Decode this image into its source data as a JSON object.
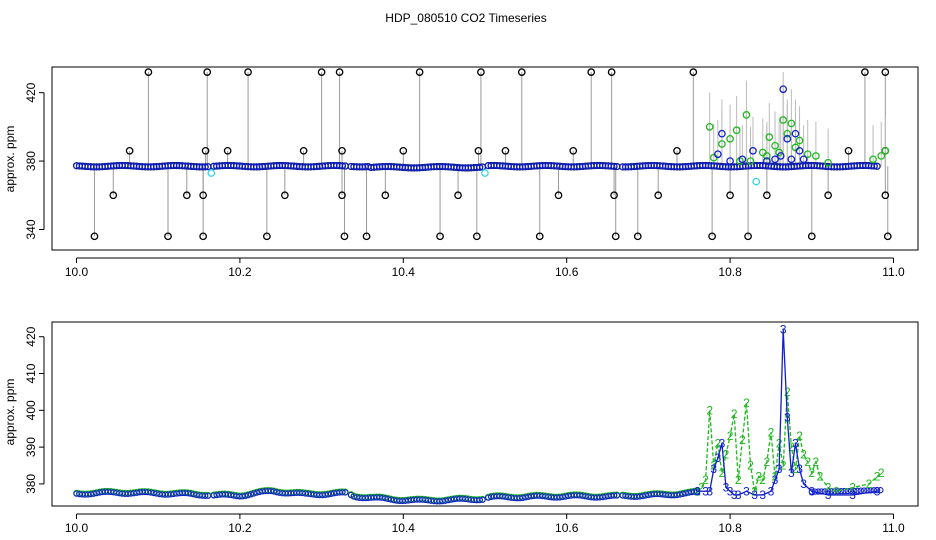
{
  "figure": {
    "title": "HDP_080510  CO2 Timeseries"
  },
  "colors": {
    "raw": "#000000",
    "cyan": "#33d6e6",
    "blue": "#1020c8",
    "green": "#1fb81f",
    "vline": "#9a9a9a"
  },
  "chart_data": [
    {
      "type": "scatter",
      "title": "",
      "xlabel": "",
      "ylabel": "approx. ppm",
      "xlim": [
        9.97,
        11.03
      ],
      "ylim": [
        328,
        435
      ],
      "xticks": [
        10.0,
        10.2,
        10.4,
        10.6,
        10.8,
        11.0
      ],
      "xtick_labels": [
        "10.0",
        "10.2",
        "10.4",
        "10.6",
        "10.8",
        "11.0"
      ],
      "yticks": [
        340,
        380,
        420
      ],
      "ytick_labels": [
        "340",
        "380",
        "420"
      ],
      "grid": false,
      "legend": "none",
      "notes": "Dense circle markers along a baseline near 377 ppm from 10.0 to 10.98 with gaps near 10.165, 10.33, 10.50 and 10.665; vertical grey spikes connect outliers near 432, 378 and 335 ppm.",
      "baseline": {
        "x_start": 10.0,
        "x_end": 10.98,
        "value": 377,
        "gaps": [
          [
            10.163,
            10.168
          ],
          [
            10.33,
            10.334
          ],
          [
            10.498,
            10.502
          ],
          [
            10.662,
            10.668
          ]
        ]
      },
      "raw_high_spikes": [
        {
          "x": 10.088,
          "y": 432
        },
        {
          "x": 10.16,
          "y": 432
        },
        {
          "x": 10.21,
          "y": 432
        },
        {
          "x": 10.3,
          "y": 432
        },
        {
          "x": 10.322,
          "y": 432
        },
        {
          "x": 10.42,
          "y": 432
        },
        {
          "x": 10.495,
          "y": 432
        },
        {
          "x": 10.545,
          "y": 432
        },
        {
          "x": 10.63,
          "y": 432
        },
        {
          "x": 10.655,
          "y": 432
        },
        {
          "x": 10.755,
          "y": 432
        },
        {
          "x": 10.965,
          "y": 432
        },
        {
          "x": 10.99,
          "y": 432
        }
      ],
      "raw_mid_points": [
        {
          "x": 10.065,
          "y": 386
        },
        {
          "x": 10.158,
          "y": 386
        },
        {
          "x": 10.185,
          "y": 386
        },
        {
          "x": 10.278,
          "y": 386
        },
        {
          "x": 10.325,
          "y": 386
        },
        {
          "x": 10.4,
          "y": 386
        },
        {
          "x": 10.492,
          "y": 386
        },
        {
          "x": 10.525,
          "y": 386
        },
        {
          "x": 10.608,
          "y": 386
        },
        {
          "x": 10.735,
          "y": 386
        },
        {
          "x": 10.945,
          "y": 386
        },
        {
          "x": 10.99,
          "y": 386
        }
      ],
      "raw_low_points": [
        {
          "x": 10.022,
          "y": 336
        },
        {
          "x": 10.045,
          "y": 360
        },
        {
          "x": 10.112,
          "y": 336
        },
        {
          "x": 10.135,
          "y": 360
        },
        {
          "x": 10.155,
          "y": 336
        },
        {
          "x": 10.155,
          "y": 360
        },
        {
          "x": 10.233,
          "y": 336
        },
        {
          "x": 10.255,
          "y": 360
        },
        {
          "x": 10.325,
          "y": 360
        },
        {
          "x": 10.328,
          "y": 336
        },
        {
          "x": 10.355,
          "y": 336
        },
        {
          "x": 10.378,
          "y": 360
        },
        {
          "x": 10.445,
          "y": 336
        },
        {
          "x": 10.467,
          "y": 360
        },
        {
          "x": 10.49,
          "y": 336
        },
        {
          "x": 10.567,
          "y": 336
        },
        {
          "x": 10.59,
          "y": 360
        },
        {
          "x": 10.658,
          "y": 360
        },
        {
          "x": 10.66,
          "y": 336
        },
        {
          "x": 10.687,
          "y": 336
        },
        {
          "x": 10.712,
          "y": 360
        },
        {
          "x": 10.778,
          "y": 336
        },
        {
          "x": 10.8,
          "y": 360
        },
        {
          "x": 10.822,
          "y": 336
        },
        {
          "x": 10.845,
          "y": 360
        },
        {
          "x": 10.9,
          "y": 336
        },
        {
          "x": 10.92,
          "y": 360
        },
        {
          "x": 10.99,
          "y": 360
        },
        {
          "x": 10.993,
          "y": 336
        }
      ],
      "cyan_points": [
        {
          "x": 10.165,
          "y": 373
        },
        {
          "x": 10.5,
          "y": 373
        },
        {
          "x": 10.832,
          "y": 368
        }
      ],
      "blue_excursions": [
        {
          "x": 10.785,
          "y": 384
        },
        {
          "x": 10.79,
          "y": 396
        },
        {
          "x": 10.8,
          "y": 380
        },
        {
          "x": 10.815,
          "y": 381
        },
        {
          "x": 10.828,
          "y": 386
        },
        {
          "x": 10.845,
          "y": 380
        },
        {
          "x": 10.855,
          "y": 381
        },
        {
          "x": 10.862,
          "y": 383
        },
        {
          "x": 10.865,
          "y": 422
        },
        {
          "x": 10.87,
          "y": 393
        },
        {
          "x": 10.875,
          "y": 381
        },
        {
          "x": 10.88,
          "y": 396
        },
        {
          "x": 10.885,
          "y": 386
        },
        {
          "x": 10.89,
          "y": 381
        }
      ],
      "green_excursions": [
        {
          "x": 10.775,
          "y": 400
        },
        {
          "x": 10.78,
          "y": 382
        },
        {
          "x": 10.79,
          "y": 390
        },
        {
          "x": 10.8,
          "y": 393
        },
        {
          "x": 10.808,
          "y": 398
        },
        {
          "x": 10.812,
          "y": 380
        },
        {
          "x": 10.82,
          "y": 407
        },
        {
          "x": 10.825,
          "y": 380
        },
        {
          "x": 10.84,
          "y": 385
        },
        {
          "x": 10.845,
          "y": 383
        },
        {
          "x": 10.848,
          "y": 394
        },
        {
          "x": 10.855,
          "y": 389
        },
        {
          "x": 10.86,
          "y": 385
        },
        {
          "x": 10.865,
          "y": 404
        },
        {
          "x": 10.87,
          "y": 396
        },
        {
          "x": 10.875,
          "y": 402
        },
        {
          "x": 10.88,
          "y": 388
        },
        {
          "x": 10.885,
          "y": 392
        },
        {
          "x": 10.895,
          "y": 384
        },
        {
          "x": 10.905,
          "y": 383
        },
        {
          "x": 10.92,
          "y": 379
        },
        {
          "x": 10.975,
          "y": 381
        },
        {
          "x": 10.985,
          "y": 383
        },
        {
          "x": 10.99,
          "y": 386
        }
      ]
    },
    {
      "type": "line",
      "title": "",
      "xlabel": "",
      "ylabel": "approx. ppm",
      "xlim": [
        9.97,
        11.03
      ],
      "ylim": [
        374,
        424
      ],
      "xticks": [
        10.0,
        10.2,
        10.4,
        10.6,
        10.8,
        11.0
      ],
      "xtick_labels": [
        "10.0",
        "10.2",
        "10.4",
        "10.6",
        "10.8",
        "11.0"
      ],
      "yticks": [
        380,
        390,
        400,
        410,
        420
      ],
      "ytick_labels": [
        "380",
        "390",
        "400",
        "410",
        "420"
      ],
      "grid": false,
      "legend": "none",
      "baseline": {
        "x": [
          10.0,
          10.05,
          10.1,
          10.16,
          10.17,
          10.2,
          10.24,
          10.28,
          10.33,
          10.34,
          10.38,
          10.42,
          10.46,
          10.5,
          10.505,
          10.55,
          10.6,
          10.66,
          10.67,
          10.7,
          10.75,
          10.77,
          10.8,
          10.85,
          10.9,
          10.95,
          10.98
        ],
        "y": [
          377.5,
          377.8,
          377.6,
          377.2,
          377,
          377,
          378.2,
          377.3,
          377.6,
          376.8,
          376,
          375.6,
          375.8,
          376.1,
          376.5,
          376.6,
          376.8,
          376.7,
          376.9,
          377,
          377.6,
          378,
          377.8,
          377.9,
          377.9,
          378.1,
          378.3
        ]
      },
      "gaps": [
        [
          10.163,
          10.168
        ],
        [
          10.33,
          10.334
        ],
        [
          10.498,
          10.502
        ],
        [
          10.662,
          10.668
        ]
      ],
      "series": [
        {
          "name": "2",
          "x": [
            10.76,
            10.765,
            10.77,
            10.775,
            10.78,
            10.785,
            10.79,
            10.795,
            10.8,
            10.805,
            10.81,
            10.815,
            10.82,
            10.825,
            10.83,
            10.835,
            10.84,
            10.845,
            10.85,
            10.855,
            10.86,
            10.865,
            10.87,
            10.875,
            10.88,
            10.885,
            10.89,
            10.895,
            10.9,
            10.905,
            10.91,
            10.92,
            10.93,
            10.95,
            10.97,
            10.98,
            10.985
          ],
          "y": [
            378,
            379,
            381,
            400,
            385,
            391,
            383,
            388,
            393,
            399,
            381,
            392,
            402,
            385,
            378,
            382,
            381,
            386,
            394,
            382,
            391,
            385,
            405,
            390,
            384,
            393,
            388,
            386,
            383,
            386,
            382,
            379,
            378,
            379,
            380,
            382,
            383
          ]
        },
        {
          "name": "3",
          "x": [
            10.76,
            10.77,
            10.775,
            10.78,
            10.785,
            10.79,
            10.795,
            10.8,
            10.805,
            10.81,
            10.82,
            10.83,
            10.84,
            10.85,
            10.855,
            10.86,
            10.865,
            10.87,
            10.875,
            10.88,
            10.885,
            10.89,
            10.9,
            10.92,
            10.95,
            10.98
          ],
          "y": [
            378,
            378,
            378,
            384,
            387,
            391,
            379,
            378,
            377,
            377,
            378,
            377,
            377,
            378,
            381,
            384,
            422,
            398,
            383,
            391,
            384,
            380,
            378,
            377,
            377,
            378
          ]
        }
      ]
    }
  ]
}
